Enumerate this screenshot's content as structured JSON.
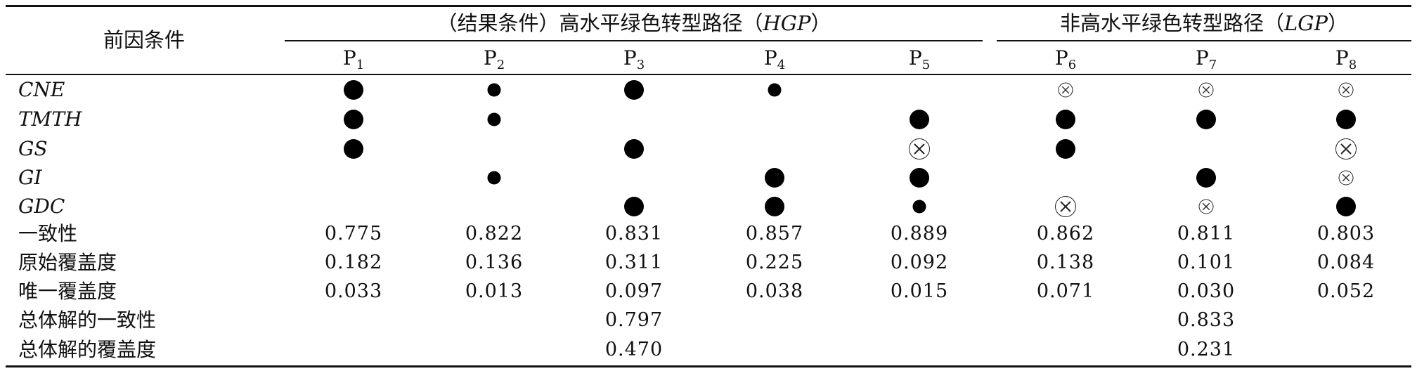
{
  "table": {
    "antecedent_header": "前因条件",
    "group_high": "（结果条件）高水平绿色转型路径（HGP）",
    "group_high_parts": [
      "（结果条件）高水平绿色转型路径（",
      "HGP",
      "）"
    ],
    "group_low_parts": [
      "非高水平绿色转型路径（",
      "LGP",
      "）"
    ],
    "paths": [
      {
        "p": "P",
        "s": "1"
      },
      {
        "p": "P",
        "s": "2"
      },
      {
        "p": "P",
        "s": "3"
      },
      {
        "p": "P",
        "s": "4"
      },
      {
        "p": "P",
        "s": "5"
      },
      {
        "p": "P",
        "s": "6"
      },
      {
        "p": "P",
        "s": "7"
      },
      {
        "p": "P",
        "s": "8"
      }
    ],
    "legend_symbols": {
      "big-core-present": "large filled circle",
      "small-peripheral-present": "small filled circle",
      "big-core-absent": "large crossed circle",
      "small-peripheral-absent": "small crossed circle",
      "blank": "empty"
    },
    "conditions": [
      {
        "label": "CNE",
        "cells": [
          "B",
          "S",
          "B",
          "S",
          "",
          "x",
          "x",
          "x"
        ]
      },
      {
        "label": "TMTH",
        "cells": [
          "B",
          "S",
          "",
          "",
          "B",
          "B",
          "B",
          "B"
        ]
      },
      {
        "label": "GS",
        "cells": [
          "B",
          "",
          "B",
          "",
          "X",
          "B",
          "",
          "X"
        ]
      },
      {
        "label": "GI",
        "cells": [
          "",
          "S",
          "",
          "B",
          "B",
          "",
          "B",
          "x"
        ]
      },
      {
        "label": "GDC",
        "cells": [
          "",
          "",
          "B",
          "B",
          "S",
          "X",
          "x",
          "B"
        ]
      }
    ],
    "metrics": [
      {
        "label": "一致性",
        "values": [
          "0.775",
          "0.822",
          "0.831",
          "0.857",
          "0.889",
          "0.862",
          "0.811",
          "0.803"
        ]
      },
      {
        "label": "原始覆盖度",
        "values": [
          "0.182",
          "0.136",
          "0.311",
          "0.225",
          "0.092",
          "0.138",
          "0.101",
          "0.084"
        ]
      },
      {
        "label": "唯一覆盖度",
        "values": [
          "0.033",
          "0.013",
          "0.097",
          "0.038",
          "0.015",
          "0.071",
          "0.030",
          "0.052"
        ]
      }
    ],
    "overall": [
      {
        "label": "总体解的一致性",
        "hgp": "0.797",
        "lgp": "0.833"
      },
      {
        "label": "总体解的覆盖度",
        "hgp": "0.470",
        "lgp": "0.231"
      }
    ]
  }
}
